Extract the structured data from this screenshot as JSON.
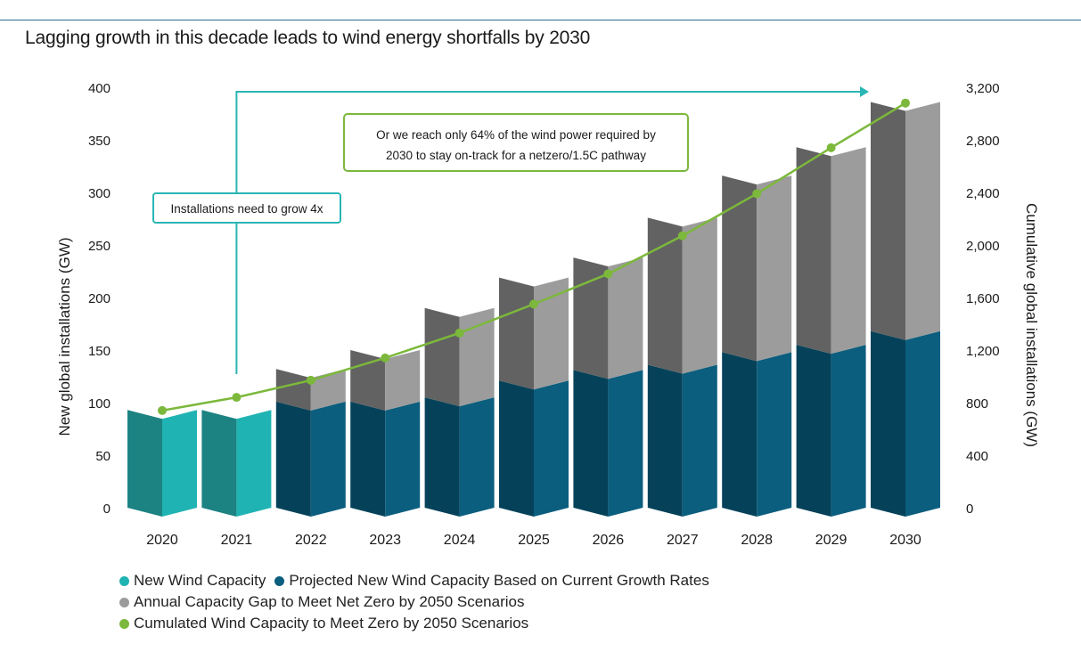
{
  "title": "Lagging growth in this decade leads to wind energy shortfalls by 2030",
  "colors": {
    "actual_front": "#20b3b3",
    "actual_side": "#1c8282",
    "projected_front": "#0b5e7e",
    "projected_side": "#05425a",
    "gap_front": "#9c9c9c",
    "gap_side": "#626262",
    "cumulative_line": "#7cb83b",
    "arrow": "#2ab5b5",
    "callout_green": "#7cb83b",
    "axis_rule": "#2d6e8e"
  },
  "chart_data": {
    "type": "bar",
    "stacked": true,
    "categories": [
      "2020",
      "2021",
      "2022",
      "2023",
      "2024",
      "2025",
      "2026",
      "2027",
      "2028",
      "2029",
      "2030"
    ],
    "series": [
      {
        "name": "New Wind Capacity",
        "axis": "left",
        "values": [
          93,
          93,
          null,
          null,
          null,
          null,
          null,
          null,
          null,
          null,
          null
        ]
      },
      {
        "name": "Projected New Wind Capacity Based on Current Growth Rates",
        "axis": "left",
        "values": [
          null,
          null,
          101,
          101,
          105,
          121,
          131,
          136,
          148,
          155,
          168
        ]
      },
      {
        "name": "Annual Capacity Gap to Meet Net Zero by 2050 Scenarios",
        "axis": "left",
        "values": [
          null,
          null,
          31,
          49,
          85,
          98,
          107,
          140,
          168,
          188,
          218
        ]
      },
      {
        "name": "Cumulated Wind Capacity to Meet Zero by 2050 Scenarios",
        "type": "line",
        "axis": "right",
        "values": [
          740,
          840,
          970,
          1140,
          1330,
          1550,
          1780,
          2070,
          2390,
          2740,
          3080
        ]
      }
    ],
    "y_left": {
      "label": "New global installations (GW)",
      "ylim": [
        0,
        400
      ],
      "ticks": [
        0,
        50,
        100,
        150,
        200,
        250,
        300,
        350,
        400
      ]
    },
    "y_right": {
      "label": "Cumulative global installations (GW)",
      "ylim": [
        0,
        3200
      ],
      "ticks": [
        "0",
        "400",
        "800",
        "1,200",
        "1,600",
        "2,000",
        "2,400",
        "2,800",
        "3,200"
      ]
    },
    "annotations": [
      {
        "text": "Installations need to grow 4x",
        "from": "2021",
        "to": "2030"
      },
      {
        "text": "Or we reach only 64% of the wind power required by 2030 to stay on-track for a netzero/1.5C pathway"
      }
    ],
    "legend": "bottom-left",
    "grid": false
  },
  "legend": [
    [
      "New Wind Capacity",
      "Projected New Wind Capacity Based on Current Growth Rates"
    ],
    [
      "Annual Capacity Gap to Meet Net Zero by 2050 Scenarios"
    ],
    [
      "Cumulated Wind Capacity to Meet Zero by 2050 Scenarios"
    ]
  ]
}
